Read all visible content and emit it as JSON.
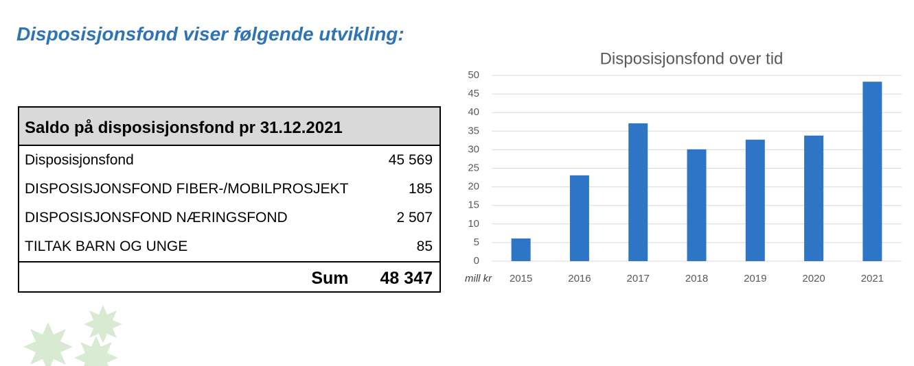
{
  "header": {
    "title": "Disposisjonsfond viser følgende utvikling:"
  },
  "table": {
    "title": "Saldo på disposisjonsfond pr 31.12.2021",
    "rows": [
      [
        "Disposisjonsfond",
        "45 569"
      ],
      [
        "DISPOSISJONSFOND FIBER-/MOBILPROSJEKT",
        "185"
      ],
      [
        "DISPOSISJONSFOND NÆRINGSFOND",
        "2 507"
      ],
      [
        "TILTAK BARN OG UNGE",
        "85"
      ]
    ],
    "total": [
      "Sum",
      "48 347"
    ]
  },
  "chart_data": {
    "type": "bar",
    "title": "Disposisjonsfond over tid",
    "ylabel": "mill kr",
    "categories": [
      "2015",
      "2016",
      "2017",
      "2018",
      "2019",
      "2020",
      "2021"
    ],
    "values": [
      6.1,
      23.1,
      37.1,
      30.1,
      32.7,
      33.8,
      48.3
    ],
    "color": "#2e75c6",
    "ylim": [
      0,
      50
    ],
    "yticks": [
      0,
      5,
      10,
      15,
      20,
      25,
      30,
      35,
      40,
      45,
      50
    ],
    "grid": true
  }
}
